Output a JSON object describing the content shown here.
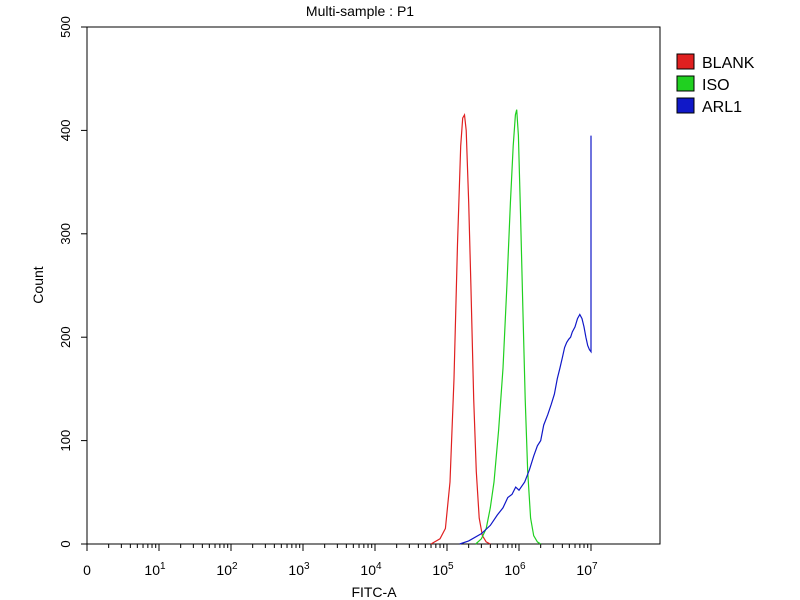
{
  "chart_data": {
    "type": "line",
    "title": "Multi-sample : P1",
    "xlabel": "FITC-A",
    "ylabel": "Count",
    "x_scale": "log",
    "x_ticks": [
      {
        "value": 1,
        "label": "0"
      },
      {
        "value": 10,
        "label": "10",
        "exp": "1"
      },
      {
        "value": 100,
        "label": "10",
        "exp": "2"
      },
      {
        "value": 1000,
        "label": "10",
        "exp": "3"
      },
      {
        "value": 10000,
        "label": "10",
        "exp": "4"
      },
      {
        "value": 100000,
        "label": "10",
        "exp": "5"
      },
      {
        "value": 1000000,
        "label": "10",
        "exp": "6"
      },
      {
        "value": 10000000,
        "label": "10",
        "exp": "7"
      }
    ],
    "y_ticks": [
      0,
      100,
      200,
      300,
      400,
      500
    ],
    "ylim": [
      0,
      500
    ],
    "grid": false,
    "legend_position": "top-right",
    "series": [
      {
        "name": "BLANK",
        "color": "#e02020",
        "points": [
          [
            60000,
            0
          ],
          [
            80000,
            5
          ],
          [
            95000,
            15
          ],
          [
            110000,
            60
          ],
          [
            125000,
            160
          ],
          [
            140000,
            290
          ],
          [
            155000,
            385
          ],
          [
            165000,
            412
          ],
          [
            175000,
            415
          ],
          [
            185000,
            400
          ],
          [
            200000,
            330
          ],
          [
            215000,
            250
          ],
          [
            235000,
            140
          ],
          [
            255000,
            70
          ],
          [
            280000,
            25
          ],
          [
            310000,
            8
          ],
          [
            350000,
            2
          ],
          [
            400000,
            0
          ]
        ]
      },
      {
        "name": "ISO",
        "color": "#20d020",
        "points": [
          [
            250000,
            0
          ],
          [
            300000,
            5
          ],
          [
            350000,
            15
          ],
          [
            400000,
            35
          ],
          [
            450000,
            60
          ],
          [
            520000,
            110
          ],
          [
            600000,
            170
          ],
          [
            680000,
            250
          ],
          [
            760000,
            330
          ],
          [
            830000,
            385
          ],
          [
            890000,
            415
          ],
          [
            930000,
            420
          ],
          [
            980000,
            395
          ],
          [
            1050000,
            320
          ],
          [
            1130000,
            230
          ],
          [
            1220000,
            140
          ],
          [
            1320000,
            70
          ],
          [
            1450000,
            25
          ],
          [
            1600000,
            8
          ],
          [
            1800000,
            2
          ],
          [
            2000000,
            0
          ]
        ]
      },
      {
        "name": "ARL1",
        "color": "#1018c8",
        "points": [
          [
            150000,
            0
          ],
          [
            200000,
            3
          ],
          [
            300000,
            10
          ],
          [
            400000,
            18
          ],
          [
            500000,
            28
          ],
          [
            600000,
            35
          ],
          [
            700000,
            45
          ],
          [
            800000,
            48
          ],
          [
            900000,
            55
          ],
          [
            1000000,
            52
          ],
          [
            1200000,
            60
          ],
          [
            1400000,
            72
          ],
          [
            1600000,
            85
          ],
          [
            1800000,
            95
          ],
          [
            2000000,
            100
          ],
          [
            2200000,
            115
          ],
          [
            2500000,
            125
          ],
          [
            2800000,
            135
          ],
          [
            3100000,
            145
          ],
          [
            3400000,
            160
          ],
          [
            3700000,
            170
          ],
          [
            4000000,
            180
          ],
          [
            4300000,
            190
          ],
          [
            4600000,
            195
          ],
          [
            4900000,
            198
          ],
          [
            5200000,
            200
          ],
          [
            5500000,
            205
          ],
          [
            6000000,
            210
          ],
          [
            6500000,
            218
          ],
          [
            7000000,
            222
          ],
          [
            7500000,
            218
          ],
          [
            8000000,
            210
          ],
          [
            8500000,
            200
          ],
          [
            9000000,
            192
          ],
          [
            9500000,
            188
          ],
          [
            10000000,
            186
          ],
          [
            10000000,
            395
          ]
        ]
      }
    ]
  }
}
